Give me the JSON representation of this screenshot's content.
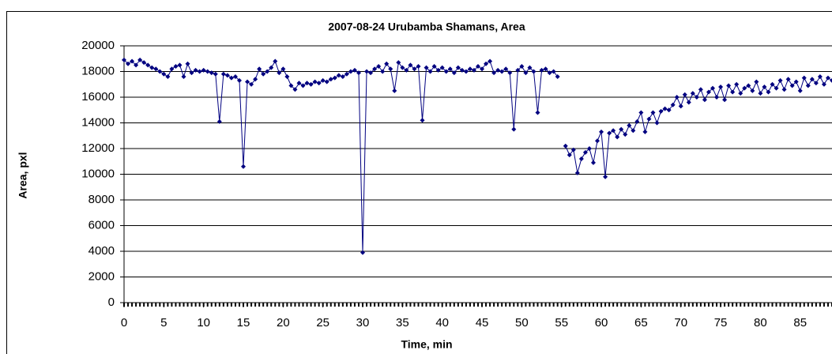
{
  "chart_data": {
    "type": "line",
    "title": "2007-08-24 Urubamba Shamans,  Area",
    "x_label": "Time, min",
    "y_label": "Area, pxl",
    "xlim": [
      0,
      89
    ],
    "xticks": [
      0,
      5,
      10,
      15,
      20,
      25,
      30,
      35,
      40,
      45,
      50,
      55,
      60,
      65,
      70,
      75,
      80,
      85
    ],
    "ylim": [
      0,
      20000
    ],
    "yticks": [
      0,
      2000,
      4000,
      6000,
      8000,
      10000,
      12000,
      14000,
      16000,
      18000,
      20000
    ],
    "grid": true,
    "x": [
      0,
      0.5,
      1,
      1.5,
      2,
      2.5,
      3,
      3.5,
      4,
      4.5,
      5,
      5.5,
      6,
      6.5,
      7,
      7.5,
      8,
      8.5,
      9,
      9.5,
      10,
      10.5,
      11,
      11.5,
      12,
      12.5,
      13,
      13.5,
      14,
      14.5,
      15,
      15.5,
      16,
      16.5,
      17,
      17.5,
      18,
      18.5,
      19,
      19.5,
      20,
      20.5,
      21,
      21.5,
      22,
      22.5,
      23,
      23.5,
      24,
      24.5,
      25,
      25.5,
      26,
      26.5,
      27,
      27.5,
      28,
      28.5,
      29,
      29.5,
      30,
      30.5,
      31,
      31.5,
      32,
      32.5,
      33,
      33.5,
      34,
      34.5,
      35,
      35.5,
      36,
      36.5,
      37,
      37.5,
      38,
      38.5,
      39,
      39.5,
      40,
      40.5,
      41,
      41.5,
      42,
      42.5,
      43,
      43.5,
      44,
      44.5,
      45,
      45.5,
      46,
      46.5,
      47,
      47.5,
      48,
      48.5,
      49,
      49.5,
      50,
      50.5,
      51,
      51.5,
      52,
      52.5,
      53,
      53.5,
      54,
      54.5,
      55,
      55.5,
      56,
      56.5,
      57,
      57.5,
      58,
      58.5,
      59,
      59.5,
      60,
      60.5,
      61,
      61.5,
      62,
      62.5,
      63,
      63.5,
      64,
      64.5,
      65,
      65.5,
      66,
      66.5,
      67,
      67.5,
      68,
      68.5,
      69,
      69.5,
      70,
      70.5,
      71,
      71.5,
      72,
      72.5,
      73,
      73.5,
      74,
      74.5,
      75,
      75.5,
      76,
      76.5,
      77,
      77.5,
      78,
      78.5,
      79,
      79.5,
      80,
      80.5,
      81,
      81.5,
      82,
      82.5,
      83,
      83.5,
      84,
      84.5,
      85,
      85.5,
      86,
      86.5,
      87,
      87.5,
      88,
      88.5,
      89
    ],
    "series": [
      {
        "name": "Area",
        "color": "#000080",
        "values": [
          18900,
          18600,
          18800,
          18500,
          18900,
          18700,
          18500,
          18300,
          18200,
          18000,
          17800,
          17600,
          18200,
          18400,
          18500,
          17600,
          18600,
          17900,
          18100,
          18000,
          18100,
          18000,
          17900,
          17800,
          14100,
          17800,
          17700,
          17500,
          17600,
          17300,
          10600,
          17200,
          17000,
          17400,
          18200,
          17800,
          18000,
          18300,
          18800,
          17900,
          18200,
          17600,
          16900,
          16600,
          17100,
          16900,
          17100,
          17000,
          17200,
          17100,
          17300,
          17200,
          17400,
          17500,
          17700,
          17600,
          17800,
          18000,
          18100,
          17900,
          3900,
          18000,
          17900,
          18200,
          18400,
          18000,
          18600,
          18200,
          16500,
          18700,
          18300,
          18100,
          18500,
          18200,
          18400,
          14200,
          18300,
          18000,
          18400,
          18100,
          18300,
          18000,
          18200,
          17900,
          18300,
          18100,
          18000,
          18200,
          18100,
          18400,
          18200,
          18600,
          18800,
          17900,
          18100,
          18000,
          18200,
          17900,
          13500,
          18100,
          18400,
          17900,
          18300,
          18000,
          14800,
          18100,
          18200,
          17900,
          18000,
          17600,
          null,
          12200,
          11500,
          11900,
          10100,
          11200,
          11700,
          12000,
          10900,
          12600,
          13300,
          9800,
          13200,
          13400,
          12900,
          13500,
          13100,
          13800,
          13400,
          14100,
          14800,
          13300,
          14300,
          14800,
          14000,
          14900,
          15100,
          15000,
          15400,
          16000,
          15300,
          16200,
          15600,
          16300,
          16000,
          16600,
          15800,
          16400,
          16700,
          16000,
          16800,
          15800,
          16900,
          16400,
          17000,
          16300,
          16700,
          16900,
          16500,
          17200,
          16300,
          16800,
          16400,
          17000,
          16700,
          17300,
          16600,
          17400,
          16900,
          17200,
          16500,
          17500,
          16900,
          17400,
          17100,
          17600,
          17000,
          17500,
          17300
        ]
      }
    ]
  }
}
